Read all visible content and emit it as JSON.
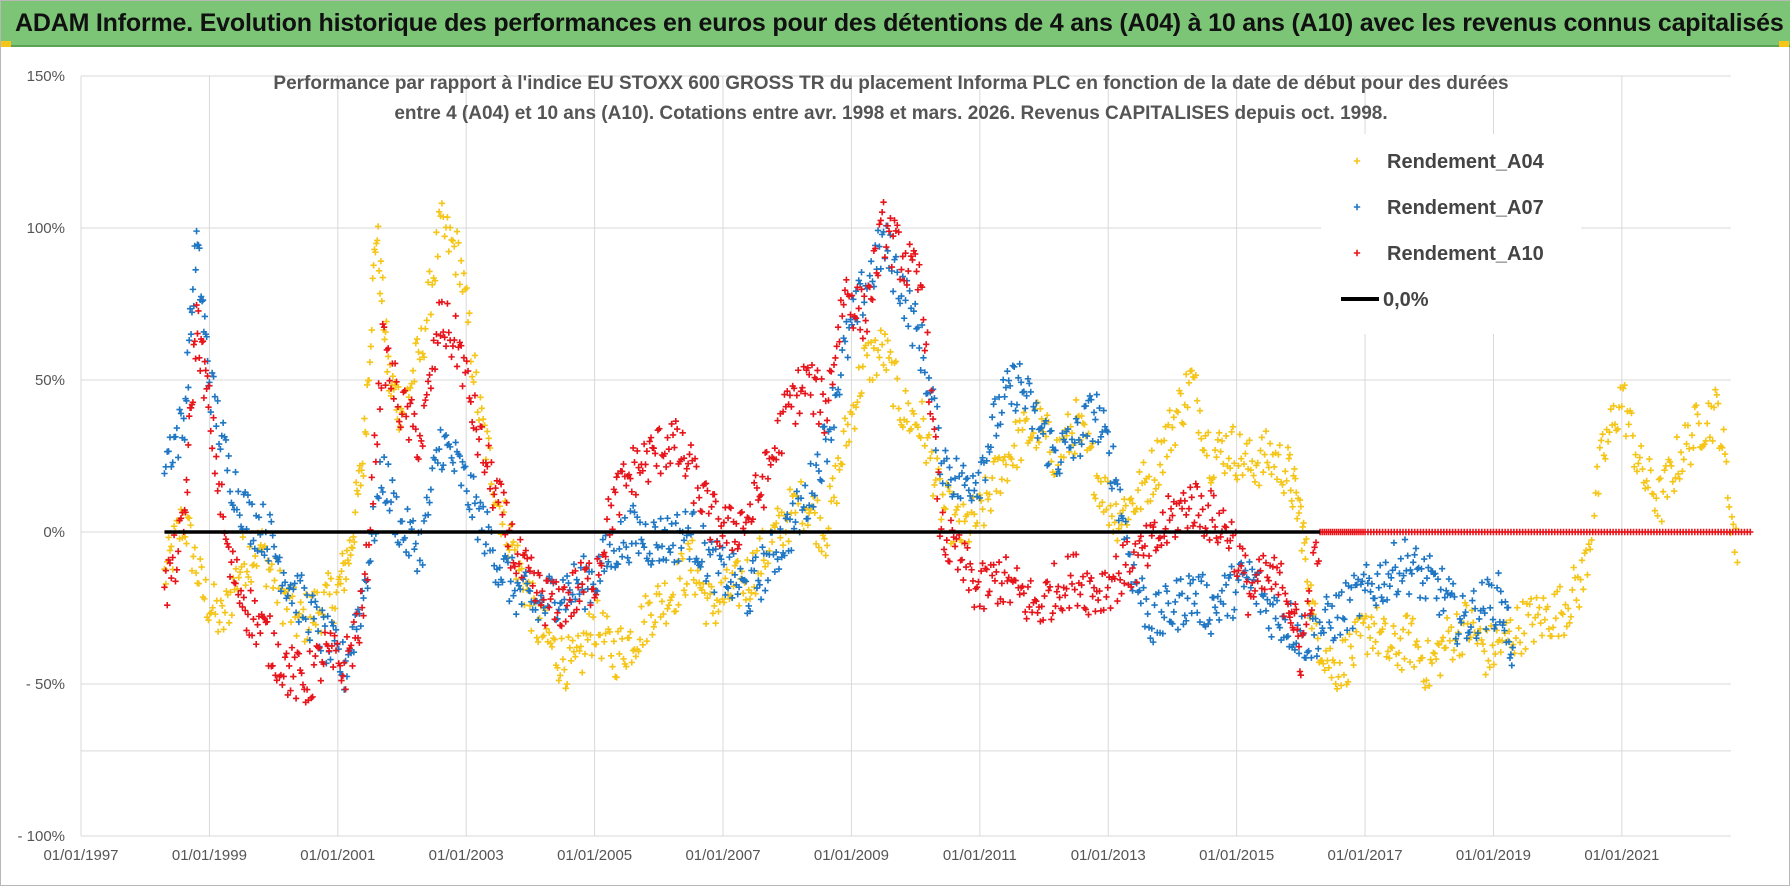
{
  "banner": {
    "title": "ADAM Informe. Evolution historique des performances en euros pour des détentions de 4 ans (A04) à 10 ans (A10) avec les revenus connus capitalisés"
  },
  "chart_data": {
    "type": "scatter",
    "title_line1": "Performance par rapport à l'indice EU STOXX 600 GROSS TR  du placement Informa PLC en fonction de la date de début pour des durées",
    "title_line2": "entre 4 (A04) et 10 ans (A10).  Cotations entre avr. 1998 et mars. 2026.  Revenus CAPITALISES depuis oct. 1998.",
    "xlabel": "",
    "ylabel": "",
    "xlim": [
      1997.0,
      2023.0
    ],
    "ylim": [
      -100,
      150
    ],
    "grid": true,
    "legend_position": "top-right",
    "y_ticks": [
      {
        "value": 150,
        "label": "150%"
      },
      {
        "value": 100,
        "label": "100%"
      },
      {
        "value": 50,
        "label": "50%"
      },
      {
        "value": 0,
        "label": "0%"
      },
      {
        "value": -50,
        "label": "- 50%"
      },
      {
        "value": -100,
        "label": "- 100%"
      }
    ],
    "extra_gridline": -72,
    "x_ticks": [
      {
        "value": 1997,
        "label": "01/01/1997"
      },
      {
        "value": 1999,
        "label": "01/01/1999"
      },
      {
        "value": 2001,
        "label": "01/01/2001"
      },
      {
        "value": 2003,
        "label": "01/01/2003"
      },
      {
        "value": 2005,
        "label": "01/01/2005"
      },
      {
        "value": 2007,
        "label": "01/01/2007"
      },
      {
        "value": 2009,
        "label": "01/01/2009"
      },
      {
        "value": 2011,
        "label": "01/01/2011"
      },
      {
        "value": 2013,
        "label": "01/01/2013"
      },
      {
        "value": 2015,
        "label": "01/01/2015"
      },
      {
        "value": 2017,
        "label": "01/01/2017"
      },
      {
        "value": 2019,
        "label": "01/01/2019"
      },
      {
        "value": 2021,
        "label": "01/01/2021"
      }
    ],
    "series": [
      {
        "name": "Rendement_A04",
        "color": "#f5c518",
        "points": [
          [
            1998.3,
            -15
          ],
          [
            1998.6,
            5
          ],
          [
            1998.9,
            -20
          ],
          [
            1999.2,
            -30
          ],
          [
            1999.5,
            -10
          ],
          [
            1999.8,
            -5
          ],
          [
            2000.1,
            -20
          ],
          [
            2000.4,
            -30
          ],
          [
            2000.7,
            -25
          ],
          [
            2001.0,
            -20
          ],
          [
            2001.2,
            -5
          ],
          [
            2001.4,
            25
          ],
          [
            2001.6,
            100
          ],
          [
            2001.8,
            50
          ],
          [
            2002.0,
            40
          ],
          [
            2002.3,
            60
          ],
          [
            2002.6,
            100
          ],
          [
            2002.9,
            90
          ],
          [
            2003.2,
            40
          ],
          [
            2003.5,
            10
          ],
          [
            2003.8,
            -10
          ],
          [
            2004.1,
            -30
          ],
          [
            2004.4,
            -40
          ],
          [
            2004.7,
            -45
          ],
          [
            2005.0,
            -30
          ],
          [
            2005.3,
            -40
          ],
          [
            2005.6,
            -35
          ],
          [
            2005.9,
            -25
          ],
          [
            2006.2,
            -20
          ],
          [
            2006.5,
            -10
          ],
          [
            2006.8,
            -25
          ],
          [
            2007.1,
            -20
          ],
          [
            2007.4,
            -15
          ],
          [
            2007.7,
            -5
          ],
          [
            2008.0,
            5
          ],
          [
            2008.3,
            10
          ],
          [
            2008.6,
            0
          ],
          [
            2008.9,
            30
          ],
          [
            2009.2,
            55
          ],
          [
            2009.5,
            60
          ],
          [
            2009.8,
            40
          ],
          [
            2010.1,
            35
          ],
          [
            2010.4,
            10
          ],
          [
            2010.7,
            0
          ],
          [
            2011.0,
            5
          ],
          [
            2011.3,
            20
          ],
          [
            2011.6,
            30
          ],
          [
            2011.9,
            35
          ],
          [
            2012.2,
            25
          ],
          [
            2012.5,
            35
          ],
          [
            2012.8,
            20
          ],
          [
            2013.1,
            5
          ],
          [
            2013.4,
            10
          ],
          [
            2013.7,
            20
          ],
          [
            2014.0,
            35
          ],
          [
            2014.3,
            50
          ],
          [
            2014.6,
            25
          ],
          [
            2014.9,
            28
          ],
          [
            2015.2,
            22
          ],
          [
            2015.5,
            25
          ],
          [
            2015.8,
            20
          ],
          [
            2016.0,
            5
          ],
          [
            2016.2,
            -30
          ],
          [
            2016.5,
            -45
          ],
          [
            2016.8,
            -40
          ],
          [
            2017.1,
            -30
          ],
          [
            2017.4,
            -40
          ],
          [
            2017.7,
            -35
          ],
          [
            2018.0,
            -45
          ],
          [
            2018.3,
            -35
          ],
          [
            2018.6,
            -30
          ],
          [
            2018.9,
            -40
          ],
          [
            2019.2,
            -35
          ],
          [
            2019.5,
            -30
          ],
          [
            2019.8,
            -28
          ],
          [
            2020.1,
            -25
          ],
          [
            2020.4,
            -15
          ],
          [
            2020.7,
            25
          ],
          [
            2021.0,
            45
          ],
          [
            2021.3,
            20
          ],
          [
            2021.6,
            10
          ],
          [
            2021.9,
            25
          ],
          [
            2022.2,
            35
          ],
          [
            2022.5,
            40
          ],
          [
            2022.8,
            -10
          ]
        ]
      },
      {
        "name": "Rendement_A07",
        "color": "#1f77c4",
        "points": [
          [
            1998.3,
            25
          ],
          [
            1998.6,
            35
          ],
          [
            1998.8,
            95
          ],
          [
            1999.0,
            50
          ],
          [
            1999.3,
            20
          ],
          [
            1999.6,
            5
          ],
          [
            1999.9,
            0
          ],
          [
            2000.2,
            -15
          ],
          [
            2000.5,
            -25
          ],
          [
            2000.8,
            -35
          ],
          [
            2001.1,
            -45
          ],
          [
            2001.4,
            -20
          ],
          [
            2001.7,
            20
          ],
          [
            2002.0,
            0
          ],
          [
            2002.3,
            -5
          ],
          [
            2002.6,
            30
          ],
          [
            2002.9,
            20
          ],
          [
            2003.2,
            5
          ],
          [
            2003.5,
            -10
          ],
          [
            2003.8,
            -20
          ],
          [
            2004.1,
            -25
          ],
          [
            2004.4,
            -20
          ],
          [
            2004.7,
            -18
          ],
          [
            2005.0,
            -15
          ],
          [
            2005.3,
            -5
          ],
          [
            2005.6,
            0
          ],
          [
            2005.9,
            -3
          ],
          [
            2006.2,
            -2
          ],
          [
            2006.5,
            0
          ],
          [
            2006.8,
            -10
          ],
          [
            2007.1,
            -15
          ],
          [
            2007.4,
            -20
          ],
          [
            2007.7,
            -10
          ],
          [
            2008.0,
            0
          ],
          [
            2008.3,
            10
          ],
          [
            2008.6,
            30
          ],
          [
            2008.9,
            60
          ],
          [
            2009.2,
            80
          ],
          [
            2009.5,
            95
          ],
          [
            2009.8,
            80
          ],
          [
            2010.1,
            60
          ],
          [
            2010.4,
            25
          ],
          [
            2010.7,
            15
          ],
          [
            2011.0,
            20
          ],
          [
            2011.3,
            40
          ],
          [
            2011.6,
            50
          ],
          [
            2011.9,
            35
          ],
          [
            2012.2,
            25
          ],
          [
            2012.5,
            30
          ],
          [
            2012.8,
            40
          ],
          [
            2013.1,
            20
          ],
          [
            2013.4,
            -15
          ],
          [
            2013.7,
            -30
          ],
          [
            2014.0,
            -25
          ],
          [
            2014.3,
            -20
          ],
          [
            2014.6,
            -25
          ],
          [
            2014.9,
            -20
          ],
          [
            2015.2,
            -15
          ],
          [
            2015.5,
            -25
          ],
          [
            2015.8,
            -30
          ],
          [
            2016.1,
            -35
          ],
          [
            2016.4,
            -30
          ],
          [
            2016.7,
            -25
          ],
          [
            2017.0,
            -20
          ],
          [
            2017.3,
            -15
          ],
          [
            2017.6,
            -10
          ],
          [
            2017.9,
            -15
          ],
          [
            2018.2,
            -20
          ],
          [
            2018.5,
            -30
          ],
          [
            2018.8,
            -25
          ],
          [
            2019.1,
            -22
          ],
          [
            2019.3,
            -38
          ]
        ]
      },
      {
        "name": "Rendement_A10",
        "color": "#e8141b",
        "points": [
          [
            1998.3,
            -20
          ],
          [
            1998.6,
            0
          ],
          [
            1998.8,
            70
          ],
          [
            1999.0,
            40
          ],
          [
            1999.3,
            -10
          ],
          [
            1999.6,
            -25
          ],
          [
            1999.9,
            -35
          ],
          [
            2000.2,
            -45
          ],
          [
            2000.5,
            -50
          ],
          [
            2000.8,
            -40
          ],
          [
            2001.1,
            -45
          ],
          [
            2001.4,
            -25
          ],
          [
            2001.7,
            60
          ],
          [
            2002.0,
            40
          ],
          [
            2002.3,
            30
          ],
          [
            2002.6,
            70
          ],
          [
            2002.9,
            60
          ],
          [
            2003.2,
            30
          ],
          [
            2003.5,
            10
          ],
          [
            2003.8,
            -10
          ],
          [
            2004.1,
            -20
          ],
          [
            2004.4,
            -25
          ],
          [
            2004.7,
            -20
          ],
          [
            2005.0,
            -15
          ],
          [
            2005.3,
            10
          ],
          [
            2005.6,
            20
          ],
          [
            2005.9,
            25
          ],
          [
            2006.2,
            30
          ],
          [
            2006.5,
            20
          ],
          [
            2006.8,
            5
          ],
          [
            2007.1,
            0
          ],
          [
            2007.4,
            5
          ],
          [
            2007.7,
            20
          ],
          [
            2008.0,
            40
          ],
          [
            2008.3,
            50
          ],
          [
            2008.6,
            40
          ],
          [
            2008.9,
            80
          ],
          [
            2009.2,
            70
          ],
          [
            2009.5,
            100
          ],
          [
            2009.8,
            90
          ],
          [
            2010.1,
            80
          ],
          [
            2010.4,
            0
          ],
          [
            2010.7,
            -10
          ],
          [
            2011.0,
            -20
          ],
          [
            2011.3,
            -15
          ],
          [
            2011.6,
            -20
          ],
          [
            2011.9,
            -25
          ],
          [
            2012.2,
            -18
          ],
          [
            2012.5,
            -15
          ],
          [
            2012.8,
            -20
          ],
          [
            2013.1,
            -15
          ],
          [
            2013.4,
            -10
          ],
          [
            2013.7,
            -5
          ],
          [
            2014.0,
            5
          ],
          [
            2014.3,
            10
          ],
          [
            2014.6,
            5
          ],
          [
            2014.9,
            0
          ],
          [
            2015.2,
            -20
          ],
          [
            2015.5,
            -15
          ],
          [
            2015.8,
            -20
          ],
          [
            2016.0,
            -40
          ],
          [
            2016.3,
            0
          ],
          [
            2017.0,
            0
          ],
          [
            2018.0,
            0
          ],
          [
            2019.0,
            0
          ],
          [
            2020.0,
            0
          ],
          [
            2021.0,
            0
          ],
          [
            2022.0,
            0
          ],
          [
            2023.0,
            0
          ]
        ]
      },
      {
        "name": "0,0%",
        "color": "#000000",
        "line": [
          [
            1998.3,
            0
          ],
          [
            2016.3,
            0
          ]
        ]
      }
    ]
  }
}
